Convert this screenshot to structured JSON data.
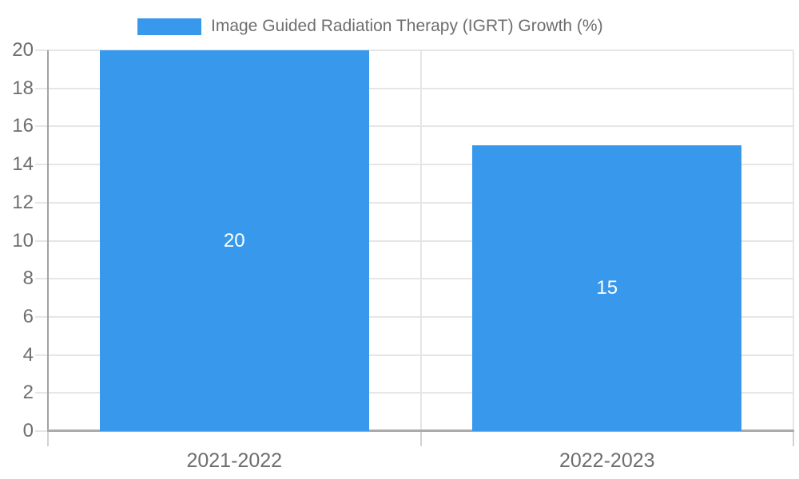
{
  "chart_data": {
    "type": "bar",
    "title": "",
    "legend": "Image Guided Radiation Therapy (IGRT) Growth (%)",
    "legend_position": "top-center",
    "categories": [
      "2021-2022",
      "2022-2023"
    ],
    "series": [
      {
        "name": "Image Guided Radiation Therapy (IGRT) Growth (%)",
        "values": [
          20,
          15
        ]
      }
    ],
    "bar_value_labels": [
      "20",
      "15"
    ],
    "ylim": [
      0,
      20
    ],
    "yticks": [
      0,
      2,
      4,
      6,
      8,
      10,
      12,
      14,
      16,
      18,
      20
    ],
    "xlabel": "",
    "ylabel": "",
    "grid": true,
    "colors": {
      "bar": "#3899EC",
      "bar_label": "#ffffff",
      "legend_text": "#6e6e6e",
      "axis_text": "#6e6e6e",
      "gridline": "#e6e6e6",
      "axis_line": "#a2a2a2",
      "baseline": "#ababab",
      "bottom_tick": "#d2d2d2",
      "background": "#ffffff"
    }
  }
}
